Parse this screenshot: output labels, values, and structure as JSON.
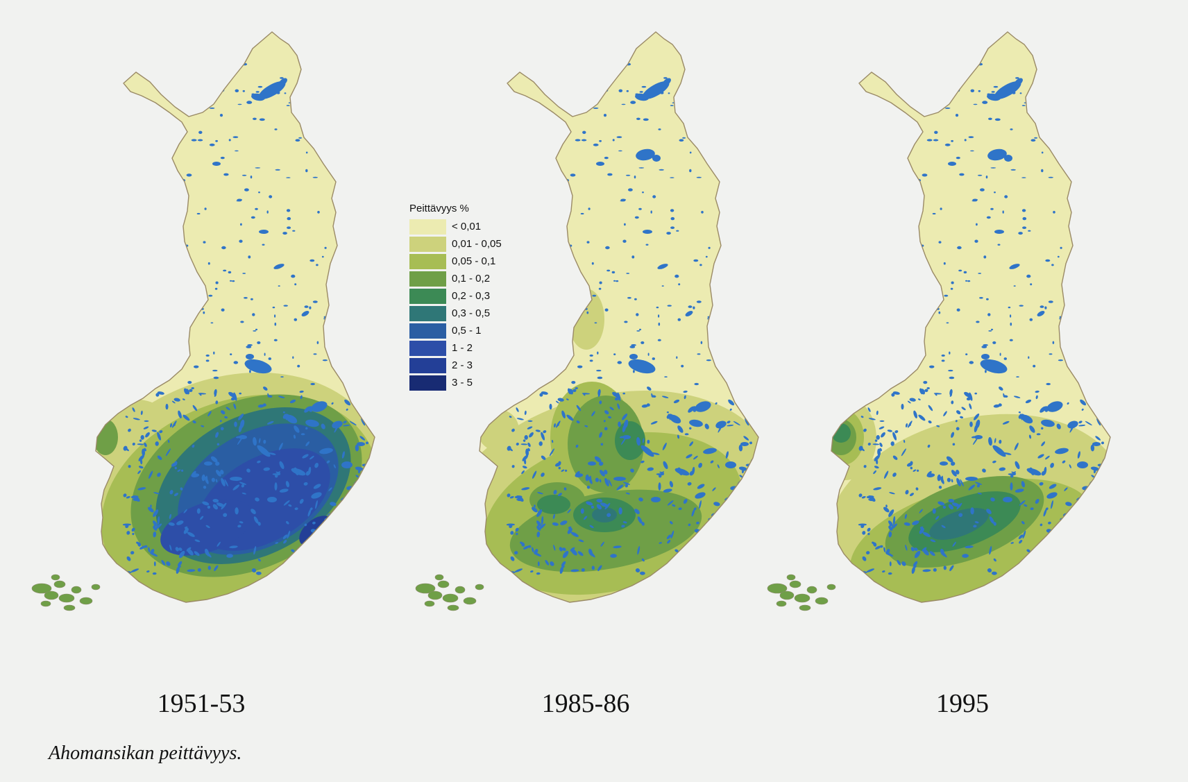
{
  "legend": {
    "title": "Peittävyys %",
    "items": [
      {
        "label": "< 0,01",
        "color": "#ecebb1"
      },
      {
        "label": "0,01 - 0,05",
        "color": "#cdd27c"
      },
      {
        "label": "0,05 - 0,1",
        "color": "#a7bd54"
      },
      {
        "label": "0,1 - 0,2",
        "color": "#6f9f47"
      },
      {
        "label": "0,2 - 0,3",
        "color": "#3c8a55"
      },
      {
        "label": "0,3 - 0,5",
        "color": "#2f7777"
      },
      {
        "label": "0,5 - 1",
        "color": "#2a5ea3"
      },
      {
        "label": "1 - 2",
        "color": "#2d4ea8"
      },
      {
        "label": "2 - 3",
        "color": "#233f97"
      },
      {
        "label": "3 - 5",
        "color": "#182b73"
      }
    ]
  },
  "maps": [
    {
      "year": "1951-53",
      "levels": [
        1,
        2,
        3,
        5,
        6,
        7,
        8
      ]
    },
    {
      "year": "1985-86",
      "levels": [
        1,
        2,
        3,
        4,
        5
      ]
    },
    {
      "year": "1995",
      "levels": [
        1,
        2,
        3,
        4,
        5
      ]
    }
  ],
  "colors": {
    "lake": "#2f74c8",
    "background": "#f1f2f0"
  },
  "caption": "Ahomansikan peittävyys."
}
